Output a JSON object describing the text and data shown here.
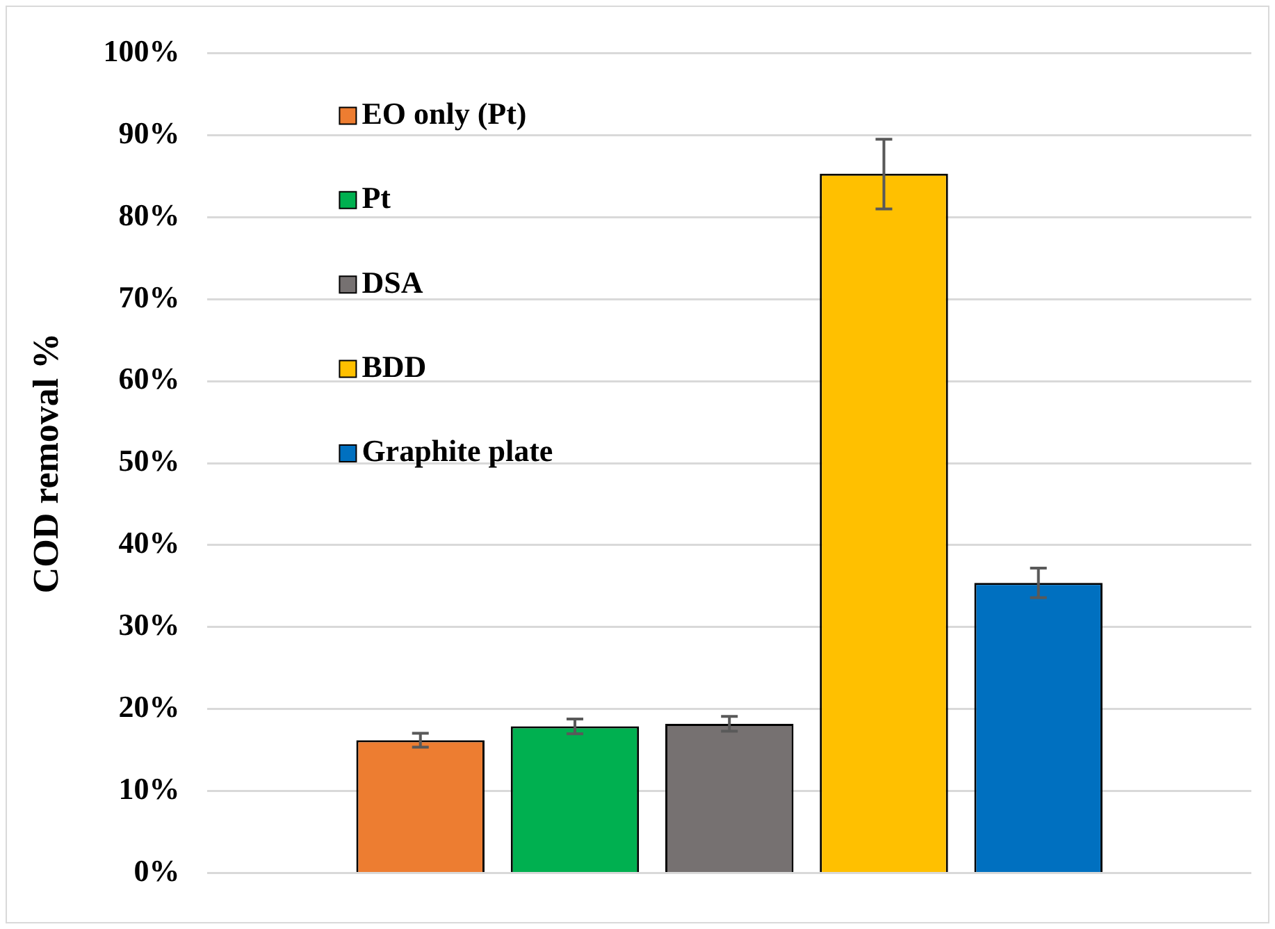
{
  "chart_data": {
    "type": "bar",
    "ylabel": "COD removal %",
    "categories": [
      null
    ],
    "series": [
      {
        "name": "EO only (Pt)",
        "color": "#ed7d31",
        "values": [
          16.2
        ],
        "errors": [
          0.85
        ]
      },
      {
        "name": "Pt",
        "color": "#00b050",
        "values": [
          17.9
        ],
        "errors": [
          0.9
        ]
      },
      {
        "name": "DSA",
        "color": "#767171",
        "values": [
          18.2
        ],
        "errors": [
          0.9
        ]
      },
      {
        "name": "BDD",
        "color": "#ffc000",
        "values": [
          85.3
        ],
        "errors": [
          [
            81.0,
            89.5
          ]
        ]
      },
      {
        "name": "Graphite plate",
        "color": "#0070c0",
        "values": [
          35.4
        ],
        "errors": [
          1.8
        ]
      }
    ],
    "ylim": [
      0,
      100
    ],
    "yticks": [
      {
        "value": 0,
        "label": "0%"
      },
      {
        "value": 10,
        "label": "10%"
      },
      {
        "value": 20,
        "label": "20%"
      },
      {
        "value": 30,
        "label": "30%"
      },
      {
        "value": 40,
        "label": "40%"
      },
      {
        "value": 50,
        "label": "50%"
      },
      {
        "value": 60,
        "label": "60%"
      },
      {
        "value": 70,
        "label": "70%"
      },
      {
        "value": 80,
        "label": "80%"
      },
      {
        "value": 90,
        "label": "90%"
      },
      {
        "value": 100,
        "label": "100%"
      }
    ],
    "grid": "y",
    "legend": "top left",
    "tick_labels": "y"
  }
}
